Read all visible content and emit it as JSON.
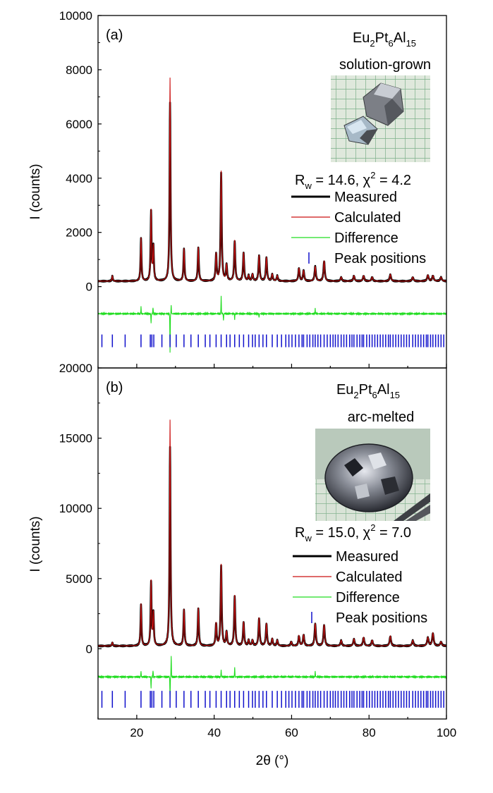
{
  "figure": {
    "x_axis": {
      "label": "2θ (°)",
      "range": [
        10,
        100
      ],
      "ticks": [
        20,
        40,
        60,
        80,
        100
      ]
    },
    "y_axis_label": "I (counts)"
  },
  "chart_data": [
    {
      "type": "line",
      "panel_label": "(a)",
      "compound": {
        "base": [
          "Eu",
          "Pt",
          "Al"
        ],
        "subs": [
          "2",
          "6",
          "15"
        ]
      },
      "sample": "solution-grown",
      "fit_stats": "R_w = 14.6, χ² = 4.2",
      "fit_stats_parts": {
        "r": "R",
        "w": "w",
        "rest1": " = 14.6, χ",
        "two": "2",
        "rest2": " = 4.2"
      },
      "ylim": [
        -3000,
        10000
      ],
      "yticks": [
        0,
        2000,
        4000,
        6000,
        8000,
        10000
      ],
      "legend": [
        "Measured",
        "Calculated",
        "Difference",
        "Peak positions"
      ],
      "baseline": 200,
      "difference_offset": -1000,
      "tick_row_level": -2000,
      "peaks": [
        [
          13.7,
          190
        ],
        [
          21.1,
          1600
        ],
        [
          23.7,
          2600
        ],
        [
          24.3,
          1250
        ],
        [
          28.6,
          7500
        ],
        [
          32.2,
          1200
        ],
        [
          35.9,
          1250
        ],
        [
          40.5,
          1000
        ],
        [
          41.8,
          4050
        ],
        [
          43.2,
          600
        ],
        [
          45.3,
          1500
        ],
        [
          47.6,
          1050
        ],
        [
          48.9,
          200
        ],
        [
          49.9,
          250
        ],
        [
          51.6,
          950
        ],
        [
          53.5,
          880
        ],
        [
          55.0,
          250
        ],
        [
          56.3,
          200
        ],
        [
          61.9,
          480
        ],
        [
          63.1,
          400
        ],
        [
          66.1,
          550
        ],
        [
          68.4,
          750
        ],
        [
          72.8,
          150
        ],
        [
          76.1,
          200
        ],
        [
          78.6,
          200
        ],
        [
          80.8,
          150
        ],
        [
          85.5,
          250
        ],
        [
          91.3,
          150
        ],
        [
          95.2,
          220
        ],
        [
          96.5,
          200
        ],
        [
          98.6,
          150
        ]
      ],
      "peak_positions": [
        11.0,
        13.7,
        17.0,
        21.1,
        23.5,
        23.9,
        24.4,
        26.5,
        28.6,
        30.2,
        32.2,
        34.0,
        35.9,
        37.7,
        38.9,
        40.5,
        41.8,
        43.2,
        44.1,
        45.3,
        46.5,
        47.6,
        48.9,
        49.9,
        50.6,
        51.6,
        52.6,
        53.5,
        55.0,
        56.3,
        57.4,
        58.5,
        59.3,
        60.1,
        61.0,
        61.9,
        62.7,
        63.1,
        64.0,
        64.7,
        65.5,
        66.1,
        66.8,
        67.5,
        68.4,
        69.2,
        70.0,
        70.7,
        71.3,
        72.0,
        72.8,
        73.5,
        74.2,
        75.0,
        75.6,
        76.1,
        76.9,
        77.6,
        78.2,
        78.6,
        79.4,
        80.1,
        80.8,
        81.5,
        82.2,
        82.9,
        83.6,
        84.3,
        85.0,
        85.5,
        86.2,
        86.9,
        87.6,
        88.3,
        89.0,
        89.7,
        90.4,
        91.3,
        92.0,
        92.7,
        93.4,
        94.1,
        94.8,
        95.2,
        95.9,
        96.5,
        97.2,
        97.9,
        98.6,
        99.3
      ],
      "difference_spikes": [
        [
          21.1,
          250
        ],
        [
          23.7,
          -350
        ],
        [
          24.2,
          250
        ],
        [
          28.6,
          -1400
        ],
        [
          28.9,
          300
        ],
        [
          41.8,
          650
        ],
        [
          42.4,
          -250
        ],
        [
          45.3,
          -200
        ],
        [
          51.6,
          -150
        ],
        [
          66.1,
          180
        ]
      ]
    },
    {
      "type": "line",
      "panel_label": "(b)",
      "compound": {
        "base": [
          "Eu",
          "Pt",
          "Al"
        ],
        "subs": [
          "2",
          "6",
          "15"
        ]
      },
      "sample": "arc-melted",
      "fit_stats": "R_w = 15.0, χ² = 7.0",
      "fit_stats_parts": {
        "r": "R",
        "w": "w",
        "rest1": " = 15.0, χ",
        "two": "2",
        "rest2": " = 7.0"
      },
      "ylim": [
        -5000,
        20000
      ],
      "yticks": [
        0,
        5000,
        10000,
        15000,
        20000
      ],
      "legend": [
        "Measured",
        "Calculated",
        "Difference",
        "Peak positions"
      ],
      "baseline": 200,
      "difference_offset": -2000,
      "tick_row_level": -3600,
      "peaks": [
        [
          13.7,
          250
        ],
        [
          21.1,
          3000
        ],
        [
          23.7,
          4600
        ],
        [
          24.3,
          2300
        ],
        [
          28.6,
          16100
        ],
        [
          32.2,
          2600
        ],
        [
          35.9,
          2700
        ],
        [
          40.5,
          1600
        ],
        [
          41.8,
          5800
        ],
        [
          43.2,
          1000
        ],
        [
          45.3,
          3600
        ],
        [
          47.6,
          1700
        ],
        [
          48.9,
          400
        ],
        [
          49.9,
          400
        ],
        [
          51.6,
          2000
        ],
        [
          53.5,
          1600
        ],
        [
          55.0,
          500
        ],
        [
          56.3,
          400
        ],
        [
          59.9,
          300
        ],
        [
          61.9,
          700
        ],
        [
          63.1,
          800
        ],
        [
          66.1,
          1600
        ],
        [
          68.4,
          1500
        ],
        [
          72.8,
          400
        ],
        [
          76.1,
          500
        ],
        [
          78.6,
          600
        ],
        [
          80.8,
          400
        ],
        [
          85.5,
          700
        ],
        [
          91.3,
          400
        ],
        [
          95.2,
          600
        ],
        [
          96.5,
          900
        ],
        [
          98.6,
          300
        ]
      ],
      "peak_positions": [
        11.0,
        13.7,
        17.0,
        21.1,
        23.5,
        23.9,
        24.4,
        26.5,
        28.6,
        30.2,
        32.2,
        34.0,
        35.9,
        37.7,
        38.9,
        40.5,
        41.8,
        43.2,
        44.1,
        45.3,
        46.5,
        47.6,
        48.9,
        49.9,
        50.6,
        51.6,
        52.6,
        53.5,
        55.0,
        56.3,
        57.4,
        58.5,
        59.3,
        60.1,
        61.0,
        61.9,
        62.7,
        63.1,
        64.0,
        64.7,
        65.5,
        66.1,
        66.8,
        67.5,
        68.4,
        69.2,
        70.0,
        70.7,
        71.3,
        72.0,
        72.8,
        73.5,
        74.2,
        75.0,
        75.6,
        76.1,
        76.9,
        77.6,
        78.2,
        78.6,
        79.4,
        80.1,
        80.8,
        81.5,
        82.2,
        82.9,
        83.6,
        84.3,
        85.0,
        85.5,
        86.2,
        86.9,
        87.6,
        88.3,
        89.0,
        89.7,
        90.4,
        91.3,
        92.0,
        92.7,
        93.4,
        94.1,
        94.8,
        95.2,
        95.9,
        96.5,
        97.2,
        97.9,
        98.6,
        99.3
      ],
      "difference_spikes": [
        [
          21.1,
          400
        ],
        [
          23.7,
          -800
        ],
        [
          24.2,
          500
        ],
        [
          28.6,
          -1500
        ],
        [
          28.9,
          1500
        ],
        [
          41.8,
          500
        ],
        [
          45.3,
          700
        ],
        [
          66.1,
          400
        ]
      ]
    }
  ],
  "colors": {
    "measured": "#000000",
    "calculated": "#cc1111",
    "difference": "#22dd22",
    "peak_positions": "#1010cc",
    "axis": "#000000"
  },
  "insets": [
    {
      "description_icon": "crystal-photo-icon"
    },
    {
      "description_icon": "bead-photo-icon"
    }
  ]
}
